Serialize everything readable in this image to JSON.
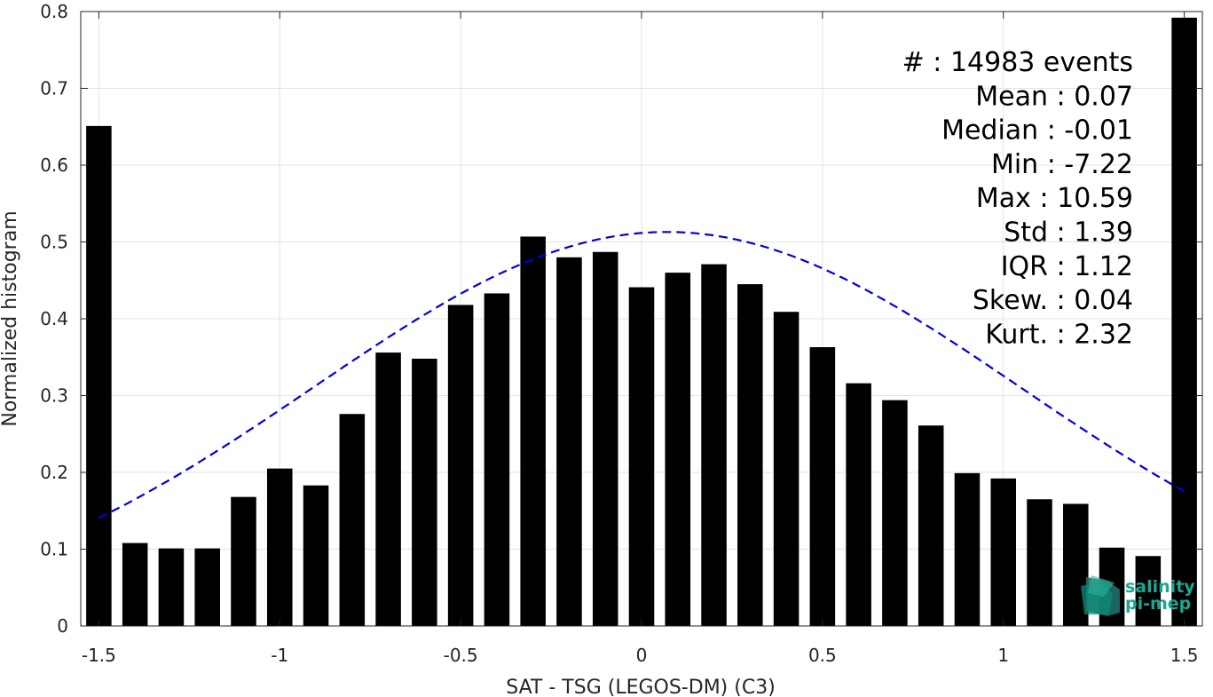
{
  "chart_data": {
    "type": "bar",
    "xlabel": "SAT - TSG (LEGOS-DM) (C3)",
    "ylabel": "Normalized histogram",
    "xlim": [
      -1.55,
      1.55
    ],
    "ylim": [
      0,
      0.8
    ],
    "xticks": [
      -1.5,
      -1,
      -0.5,
      0,
      0.5,
      1,
      1.5
    ],
    "xtick_labels": [
      "-1.5",
      "-1",
      "-0.5",
      "0",
      "0.5",
      "1",
      "1.5"
    ],
    "yticks": [
      0,
      0.1,
      0.2,
      0.3,
      0.4,
      0.5,
      0.6,
      0.7,
      0.8
    ],
    "ytick_labels": [
      "0",
      "0.1",
      "0.2",
      "0.3",
      "0.4",
      "0.5",
      "0.6",
      "0.7",
      "0.8"
    ],
    "grid": true,
    "bar_width": 0.07,
    "bar_color": "#000000",
    "bars": {
      "x": [
        -1.5,
        -1.4,
        -1.3,
        -1.2,
        -1.1,
        -1.0,
        -0.9,
        -0.8,
        -0.7,
        -0.6,
        -0.5,
        -0.4,
        -0.3,
        -0.2,
        -0.1,
        0.0,
        0.1,
        0.2,
        0.3,
        0.4,
        0.5,
        0.6,
        0.7,
        0.8,
        0.9,
        1.0,
        1.1,
        1.2,
        1.3,
        1.4,
        1.5
      ],
      "values": [
        0.651,
        0.108,
        0.101,
        0.101,
        0.168,
        0.205,
        0.183,
        0.276,
        0.356,
        0.348,
        0.418,
        0.433,
        0.507,
        0.48,
        0.487,
        0.441,
        0.46,
        0.471,
        0.445,
        0.409,
        0.363,
        0.316,
        0.294,
        0.261,
        0.199,
        0.192,
        0.165,
        0.159,
        0.102,
        0.091,
        0.792
      ]
    },
    "fit_curve": {
      "style": "dashed",
      "color": "#0000e6",
      "mean": 0.07,
      "std": 1.39,
      "peak": 0.513,
      "x_range": [
        -1.5,
        1.5
      ]
    },
    "annotations": [
      "#  : 14983 events",
      "Mean : 0.07",
      "Median : -0.01",
      "Min : -7.22",
      "Max : 10.59",
      "Std : 1.39",
      "IQR : 1.12",
      "Skew. : 0.04",
      "Kurt. : 2.32"
    ]
  },
  "logo": {
    "line1": "salinity",
    "line2": "pi-mep",
    "color": "#1aa890"
  }
}
